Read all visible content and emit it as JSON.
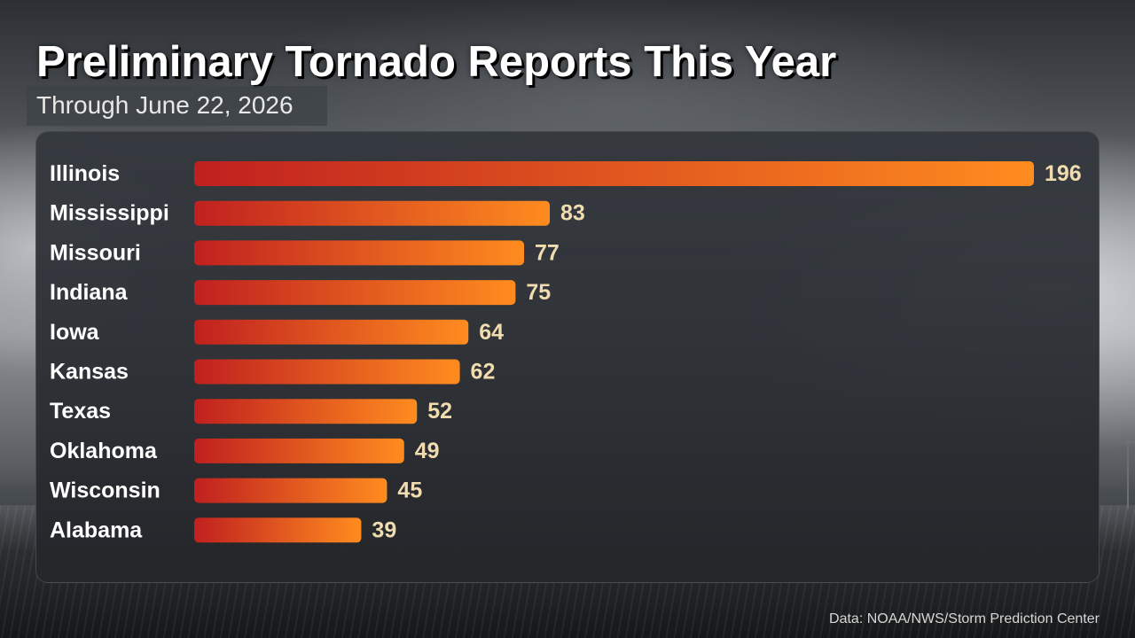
{
  "header": {
    "title": "Preliminary Tornado Reports This Year",
    "subtitle": "Through June 22, 2026"
  },
  "footer": {
    "source": "Data: NOAA/NWS/Storm Prediction Center"
  },
  "colors": {
    "bar_start": "#c0201f",
    "bar_end": "#ff8c1f",
    "value_label": "#f0dcae",
    "category_label": "#ffffff"
  },
  "chart_data": {
    "type": "bar",
    "orientation": "horizontal",
    "title": "Preliminary Tornado Reports This Year",
    "subtitle": "Through June 22, 2026",
    "categories": [
      "Illinois",
      "Mississippi",
      "Missouri",
      "Indiana",
      "Iowa",
      "Kansas",
      "Texas",
      "Oklahoma",
      "Wisconsin",
      "Alabama"
    ],
    "values": [
      196,
      83,
      77,
      75,
      64,
      62,
      52,
      49,
      45,
      39
    ],
    "xlabel": "",
    "ylabel": "",
    "xlim": [
      0,
      196
    ],
    "grid": false,
    "legend": "none",
    "data_labels": true
  }
}
